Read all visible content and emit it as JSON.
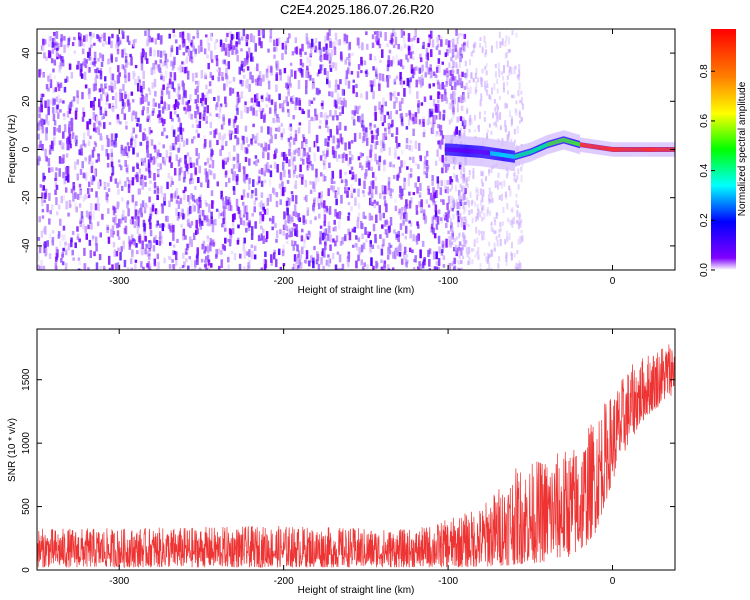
{
  "title": "C2E4.2025.186.07.26.R20",
  "chart_data": [
    {
      "type": "heatmap",
      "xlabel": "Height of straight line (km)",
      "ylabel": "Frequency (Hz)",
      "xlim": [
        -350,
        38
      ],
      "ylim": [
        -50,
        50
      ],
      "xticks": [
        -300,
        -200,
        -100,
        0
      ],
      "yticks": [
        -40,
        -20,
        0,
        20,
        40
      ],
      "colorbar": {
        "label": "Normalized spectral amplitude",
        "range": [
          0,
          0.97
        ],
        "ticks": [
          "0.0",
          "0.2",
          "0.4",
          "0.6",
          "0.8"
        ],
        "colormap": [
          "#ffffff",
          "#8000ff",
          "#0000ff",
          "#00ffff",
          "#00ff00",
          "#ffff00",
          "#ff8000",
          "#ff0000"
        ]
      },
      "signal_track": [
        {
          "x": -100,
          "y": 0
        },
        {
          "x": -80,
          "y": -1
        },
        {
          "x": -60,
          "y": -3
        },
        {
          "x": -50,
          "y": -1
        },
        {
          "x": -40,
          "y": 2
        },
        {
          "x": -30,
          "y": 4
        },
        {
          "x": -20,
          "y": 2
        },
        {
          "x": -10,
          "y": 1
        },
        {
          "x": 0,
          "y": 0
        },
        {
          "x": 20,
          "y": 0
        },
        {
          "x": 38,
          "y": 0
        }
      ],
      "noise_ends_at_x": -100,
      "grid": false
    },
    {
      "type": "line",
      "xlabel": "Height of straight line (km)",
      "ylabel": "SNR (10 * v/v)",
      "xlim": [
        -350,
        38
      ],
      "ylim": [
        0,
        1900
      ],
      "xticks": [
        -300,
        -200,
        -100,
        0
      ],
      "yticks": [
        0,
        500,
        1000,
        1500
      ],
      "color": "#ee3333",
      "envelope": [
        {
          "x": -350,
          "low": 20,
          "high": 330
        },
        {
          "x": -300,
          "low": 20,
          "high": 330
        },
        {
          "x": -200,
          "low": 20,
          "high": 350
        },
        {
          "x": -120,
          "low": 20,
          "high": 320
        },
        {
          "x": -100,
          "low": 20,
          "high": 400
        },
        {
          "x": -80,
          "low": 20,
          "high": 500
        },
        {
          "x": -60,
          "low": 40,
          "high": 800
        },
        {
          "x": -40,
          "low": 60,
          "high": 900
        },
        {
          "x": -20,
          "low": 120,
          "high": 1000
        },
        {
          "x": -10,
          "low": 300,
          "high": 1250
        },
        {
          "x": 0,
          "low": 700,
          "high": 1400
        },
        {
          "x": 10,
          "low": 1000,
          "high": 1600
        },
        {
          "x": 20,
          "low": 1200,
          "high": 1700
        },
        {
          "x": 38,
          "low": 1400,
          "high": 1850
        }
      ],
      "grid": false
    }
  ]
}
